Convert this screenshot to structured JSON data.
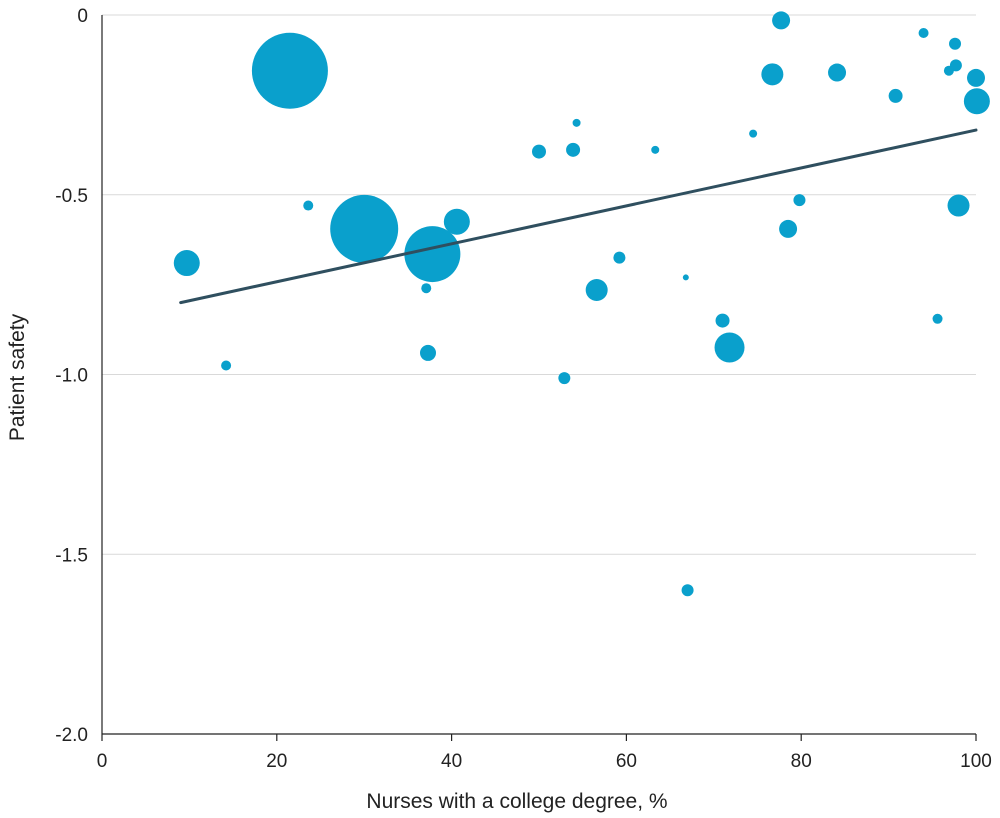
{
  "chart_data": {
    "type": "scatter",
    "title": "",
    "xlabel": "Nurses with a college degree, %",
    "ylabel": "Patient safety",
    "xlim": [
      0,
      100
    ],
    "ylim": [
      -2.0,
      0
    ],
    "x_ticks": [
      0,
      20,
      40,
      60,
      80,
      100
    ],
    "y_ticks": [
      0,
      -0.5,
      -1.0,
      -1.5,
      -2.0
    ],
    "x_tick_labels": [
      "0",
      "20",
      "40",
      "60",
      "80",
      "100"
    ],
    "y_tick_labels": [
      "0",
      "-0.5",
      "-1.0",
      "-1.5",
      "-2.0"
    ],
    "grid": "horizontal",
    "point_color": "#0aa0cc",
    "fit_line_color": "#2f4f5f",
    "fit_line": {
      "x": [
        9,
        100
      ],
      "y": [
        -0.8,
        -0.32
      ]
    },
    "points": [
      {
        "x": 21.5,
        "y": -0.155,
        "size": 38
      },
      {
        "x": 30.0,
        "y": -0.595,
        "size": 34
      },
      {
        "x": 37.8,
        "y": -0.665,
        "size": 28
      },
      {
        "x": 40.6,
        "y": -0.575,
        "size": 13
      },
      {
        "x": 9.7,
        "y": -0.69,
        "size": 13
      },
      {
        "x": 14.2,
        "y": -0.975,
        "size": 5
      },
      {
        "x": 23.6,
        "y": -0.53,
        "size": 5
      },
      {
        "x": 37.1,
        "y": -0.76,
        "size": 5
      },
      {
        "x": 37.3,
        "y": -0.94,
        "size": 8
      },
      {
        "x": 50.0,
        "y": -0.38,
        "size": 7
      },
      {
        "x": 53.9,
        "y": -0.375,
        "size": 7
      },
      {
        "x": 54.3,
        "y": -0.3,
        "size": 4
      },
      {
        "x": 52.9,
        "y": -1.01,
        "size": 6
      },
      {
        "x": 56.6,
        "y": -0.765,
        "size": 11
      },
      {
        "x": 59.2,
        "y": -0.675,
        "size": 6
      },
      {
        "x": 63.3,
        "y": -0.375,
        "size": 4
      },
      {
        "x": 66.8,
        "y": -0.73,
        "size": 3
      },
      {
        "x": 67.0,
        "y": -1.6,
        "size": 6
      },
      {
        "x": 71.0,
        "y": -0.85,
        "size": 7
      },
      {
        "x": 71.8,
        "y": -0.925,
        "size": 15
      },
      {
        "x": 74.5,
        "y": -0.33,
        "size": 4
      },
      {
        "x": 76.7,
        "y": -0.165,
        "size": 11
      },
      {
        "x": 77.7,
        "y": -0.015,
        "size": 9
      },
      {
        "x": 78.5,
        "y": -0.595,
        "size": 9
      },
      {
        "x": 79.8,
        "y": -0.515,
        "size": 6
      },
      {
        "x": 84.1,
        "y": -0.16,
        "size": 9
      },
      {
        "x": 90.8,
        "y": -0.225,
        "size": 7
      },
      {
        "x": 94.0,
        "y": -0.05,
        "size": 5
      },
      {
        "x": 95.6,
        "y": -0.845,
        "size": 5
      },
      {
        "x": 96.9,
        "y": -0.155,
        "size": 5
      },
      {
        "x": 97.6,
        "y": -0.08,
        "size": 6
      },
      {
        "x": 97.7,
        "y": -0.14,
        "size": 6
      },
      {
        "x": 98.0,
        "y": -0.53,
        "size": 11
      },
      {
        "x": 100.0,
        "y": -0.175,
        "size": 9
      },
      {
        "x": 100.1,
        "y": -0.24,
        "size": 13
      }
    ]
  }
}
